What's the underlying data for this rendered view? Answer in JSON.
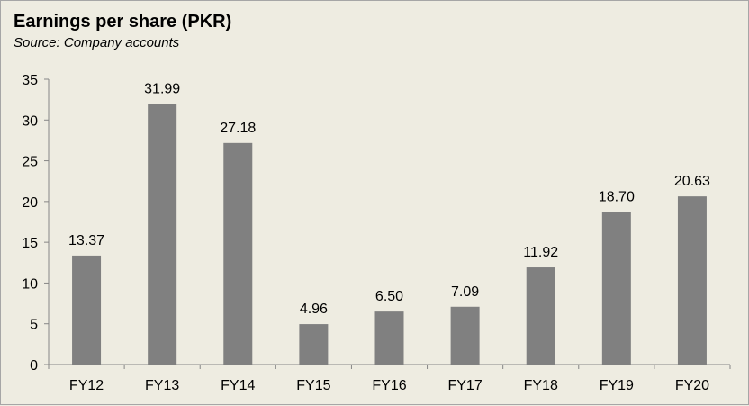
{
  "chart_data": {
    "type": "bar",
    "title": "Earnings per share (PKR)",
    "subtitle": "Source: Company accounts",
    "categories": [
      "FY12",
      "FY13",
      "FY14",
      "FY15",
      "FY16",
      "FY17",
      "FY18",
      "FY19",
      "FY20"
    ],
    "values": [
      13.37,
      31.99,
      27.18,
      4.96,
      6.5,
      7.09,
      11.92,
      18.7,
      20.63
    ],
    "data_labels": [
      "13.37",
      "31.99",
      "27.18",
      "4.96",
      "6.50",
      "7.09",
      "11.92",
      "18.70",
      "20.63"
    ],
    "yticks": [
      "0",
      "5",
      "10",
      "15",
      "20",
      "25",
      "30",
      "35"
    ],
    "ylim": [
      0,
      35
    ],
    "grid": false,
    "legend": "none",
    "colors": {
      "bar": "#808080",
      "background": "#eeece1",
      "axis": "#868686"
    }
  }
}
